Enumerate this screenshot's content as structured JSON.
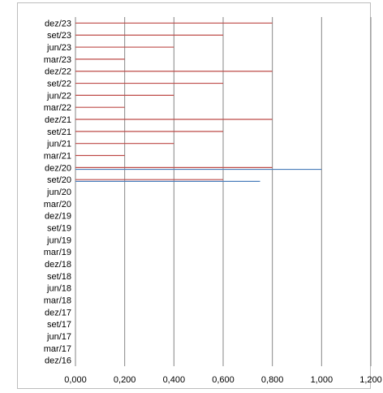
{
  "chart_data": {
    "type": "bar",
    "orientation": "horizontal",
    "categories": [
      "dez/16",
      "mar/17",
      "jun/17",
      "set/17",
      "dez/17",
      "mar/18",
      "jun/18",
      "set/18",
      "dez/18",
      "mar/19",
      "jun/19",
      "set/19",
      "dez/19",
      "mar/20",
      "jun/20",
      "set/20",
      "dez/20",
      "mar/21",
      "jun/21",
      "set/21",
      "dez/21",
      "mar/22",
      "jun/22",
      "set/22",
      "dez/22",
      "mar/23",
      "jun/23",
      "set/23",
      "dez/23"
    ],
    "series": [
      {
        "color": "#4a7ebb",
        "values": [
          null,
          null,
          null,
          null,
          null,
          null,
          null,
          null,
          null,
          null,
          null,
          null,
          null,
          null,
          null,
          0.75,
          1.0,
          null,
          null,
          null,
          null,
          null,
          null,
          null,
          null,
          null,
          null,
          null,
          null
        ]
      },
      {
        "color": "#be4b48",
        "values": [
          null,
          null,
          null,
          null,
          null,
          null,
          null,
          null,
          null,
          null,
          null,
          null,
          null,
          null,
          null,
          0.6,
          0.8,
          0.2,
          0.4,
          0.6,
          0.8,
          0.2,
          0.4,
          0.6,
          0.8,
          0.2,
          0.4,
          0.6,
          0.8
        ]
      }
    ],
    "xlim": [
      0,
      1.2
    ],
    "xticks": [
      "0,000",
      "0,200",
      "0,400",
      "0,600",
      "0,800",
      "1,000",
      "1,200"
    ],
    "xtick_values": [
      0,
      0.2,
      0.4,
      0.6,
      0.8,
      1.0,
      1.2
    ],
    "grid": "vertical",
    "title": "",
    "xlabel": "",
    "ylabel": "",
    "gridline_color": "#868686",
    "axis_color": "#868686"
  }
}
